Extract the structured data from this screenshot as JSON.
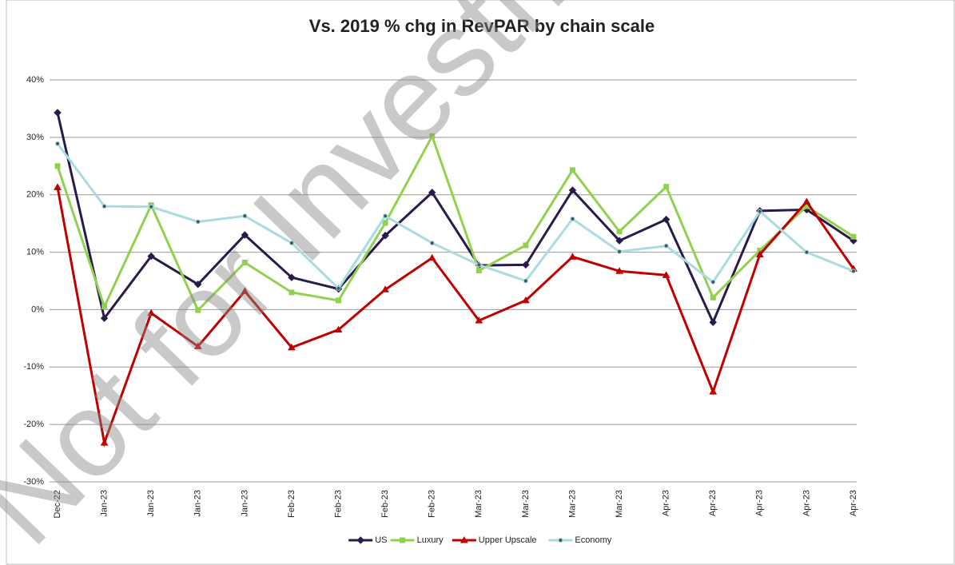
{
  "chart_data": {
    "type": "line",
    "title": "Vs. 2019 % chg in RevPAR by chain scale",
    "watermark": "Not for Investment",
    "categories": [
      "Dec-22",
      "Jan-23",
      "Jan-23",
      "Jan-23",
      "Jan-23",
      "Feb-23",
      "Feb-23",
      "Feb-23",
      "Feb-23",
      "Mar-23",
      "Mar-23",
      "Mar-23",
      "Mar-23",
      "Apr-23",
      "Apr-23",
      "Apr-23",
      "Apr-23",
      "Apr-23"
    ],
    "series": [
      {
        "name": "US",
        "color": "#2a1a4a",
        "marker": "diamond",
        "values": [
          34.3,
          -1.5,
          9.3,
          4.4,
          13.0,
          5.6,
          3.6,
          12.9,
          20.4,
          7.7,
          7.8,
          20.8,
          12.0,
          15.7,
          -2.2,
          17.2,
          17.4,
          12.0
        ]
      },
      {
        "name": "Luxury",
        "color": "#92d050",
        "marker": "square",
        "values": [
          25.0,
          0.5,
          18.2,
          -0.1,
          8.2,
          3.0,
          1.6,
          15.1,
          30.2,
          6.8,
          11.2,
          24.3,
          13.6,
          21.4,
          2.1,
          10.3,
          18.0,
          12.7
        ]
      },
      {
        "name": "Upper Upscale",
        "color": "#c00000",
        "marker": "triangle",
        "values": [
          21.3,
          -23.2,
          -0.6,
          -6.4,
          3.2,
          -6.6,
          -3.5,
          3.5,
          9.0,
          -1.9,
          1.6,
          9.2,
          6.7,
          6.0,
          -14.3,
          9.6,
          18.8,
          7.1
        ]
      },
      {
        "name": "Economy",
        "color": "#a8dce0",
        "marker": "circle",
        "values": [
          28.9,
          18.0,
          17.9,
          15.3,
          16.3,
          11.6,
          3.7,
          16.3,
          11.6,
          7.8,
          5.0,
          15.8,
          10.1,
          11.1,
          4.8,
          17.1,
          10.0,
          6.7
        ]
      }
    ],
    "ylim": [
      -30,
      40
    ],
    "yticks": [
      {
        "value": -30,
        "label": "-30%"
      },
      {
        "value": -20,
        "label": "-20%"
      },
      {
        "value": -10,
        "label": "-10%"
      },
      {
        "value": 0,
        "label": "0%"
      },
      {
        "value": 10,
        "label": "10%"
      },
      {
        "value": 20,
        "label": "20%"
      },
      {
        "value": 30,
        "label": "30%"
      },
      {
        "value": 40,
        "label": "40%"
      }
    ],
    "grid": true,
    "legend": "bottom"
  }
}
